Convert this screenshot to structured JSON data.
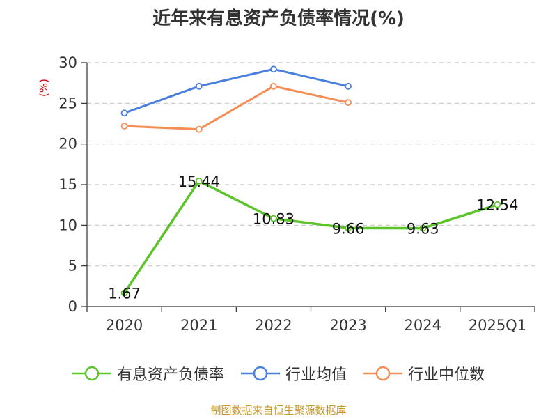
{
  "title": "近年来有息资产负债率情况(%)",
  "source": "制图数据来自恒生聚源数据库",
  "chart_data": {
    "type": "line",
    "title": "近年来有息资产负债率情况(%)",
    "xlabel": "",
    "ylabel": "(%)",
    "categories": [
      "2020",
      "2021",
      "2022",
      "2023",
      "2024",
      "2025Q1"
    ],
    "ylim": [
      0,
      30
    ],
    "yticks": [
      0,
      5,
      10,
      15,
      20,
      25,
      30
    ],
    "grid": true,
    "legend_position": "bottom",
    "series": [
      {
        "name": "有息资产负债率",
        "color": "#5cc42b",
        "values": [
          1.67,
          15.44,
          10.83,
          9.66,
          9.63,
          12.54
        ],
        "labels": [
          "1.67",
          "15.44",
          "10.83",
          "9.66",
          "9.63",
          "12.54"
        ],
        "show_labels": true
      },
      {
        "name": "行业均值",
        "color": "#4a7fdb",
        "values": [
          23.8,
          27.1,
          29.2,
          27.1,
          null,
          null
        ],
        "show_labels": false
      },
      {
        "name": "行业中位数",
        "color": "#f58d57",
        "values": [
          22.2,
          21.8,
          27.1,
          25.1,
          null,
          null
        ],
        "show_labels": false
      }
    ]
  }
}
